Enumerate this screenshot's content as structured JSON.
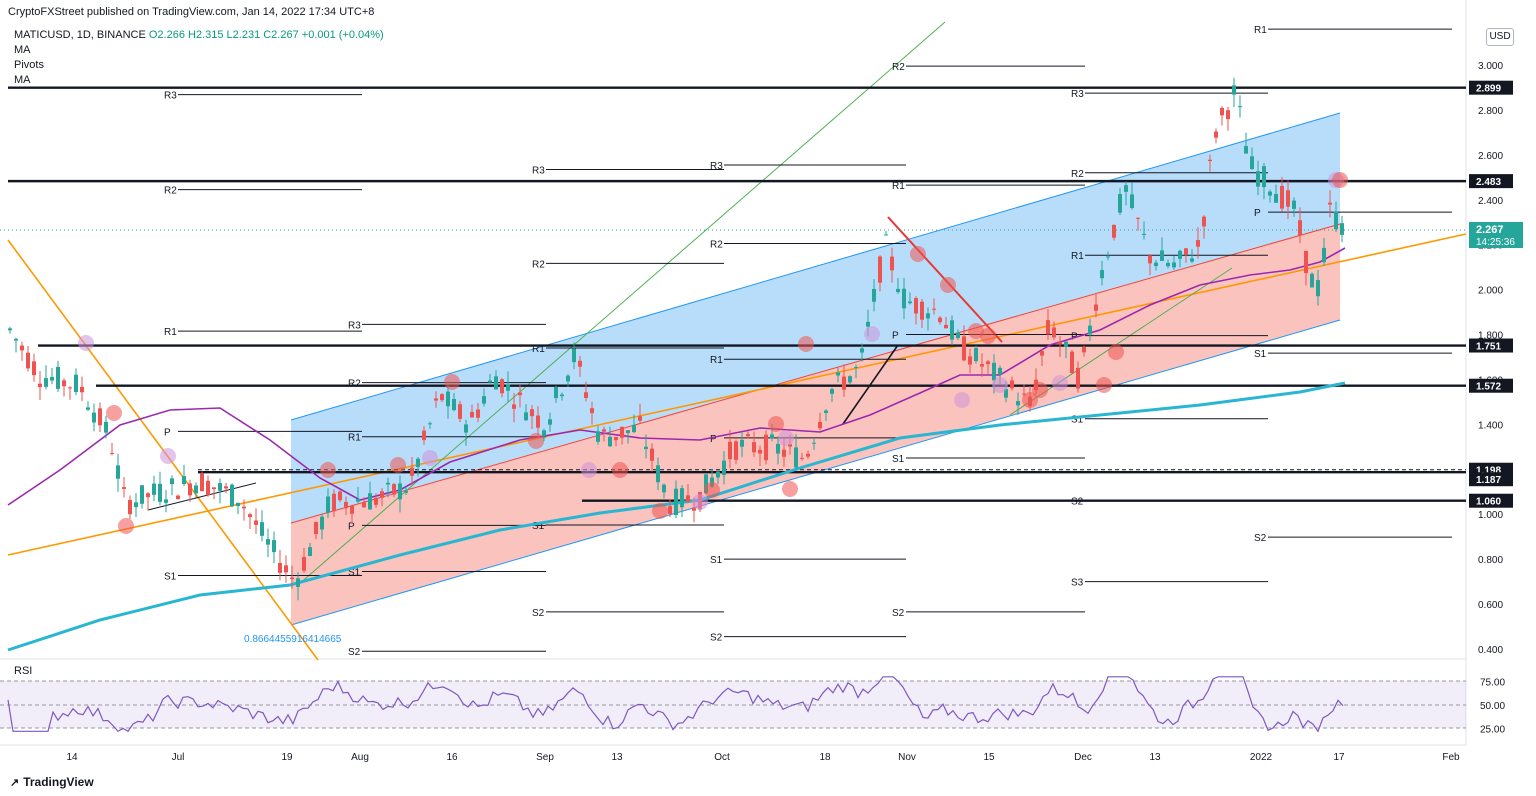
{
  "header": {
    "published_by": "CryptoFXStreet published on TradingView.com, Jan 14, 2022 17:34 UTC+8"
  },
  "legend": {
    "symbol": "MATICUSD, 1D, BINANCE",
    "ohlc": "O2.266  H2.315  L2.231  C2.267  +0.001 (+0.04%)",
    "items": [
      "MA",
      "Pivots",
      "MA"
    ],
    "rsi_label": "RSI"
  },
  "currency_button": "USD",
  "price_axis": {
    "ticks": [
      "3.000",
      "2.800",
      "2.600",
      "2.400",
      "2.200",
      "2.000",
      "1.800",
      "1.600",
      "1.400",
      "1.200",
      "1.000",
      "0.800",
      "0.600",
      "0.400"
    ],
    "rsi_ticks": [
      "75.00",
      "50.00",
      "25.00"
    ]
  },
  "level_badges": [
    {
      "label": "2.899",
      "value": 2.899
    },
    {
      "label": "2.483",
      "value": 2.483
    },
    {
      "label": "1.751",
      "value": 1.751
    },
    {
      "label": "1.572",
      "value": 1.572
    },
    {
      "label": "1.198",
      "value": 1.198
    },
    {
      "label": "1.187",
      "value": 1.187
    },
    {
      "label": "1.060",
      "value": 1.06
    }
  ],
  "current_price_badge": {
    "price": "2.267",
    "countdown": "14:25:36",
    "color": "#26a69a"
  },
  "time_axis": [
    "14",
    "Jul",
    "19",
    "Aug",
    "16",
    "Sep",
    "13",
    "Oct",
    "18",
    "Nov",
    "15",
    "Dec",
    "13",
    "2022",
    "17",
    "Feb"
  ],
  "fib_annotation": "0.8664455916414665",
  "footer": {
    "brand": "TradingView"
  },
  "colors": {
    "up": "#26a69a",
    "down": "#ef5350",
    "channel_blue": "#2196f3",
    "channel_red": "#f44336",
    "ma_teal": "#29b6d1",
    "ma_purple": "#9c27b0",
    "trend_orange": "#ff9800",
    "green_line": "#4caf50"
  },
  "chart_data": {
    "type": "candlestick",
    "symbol": "MATICUSD",
    "interval": "1D",
    "ylim": [
      0.35,
      3.1
    ],
    "current_price": 2.267,
    "horizontal_levels": [
      2.899,
      2.483,
      1.751,
      1.572,
      1.198,
      1.187,
      1.06
    ],
    "pivot_labels": [
      "R1",
      "R2",
      "R3",
      "P",
      "S1",
      "S2",
      "S3"
    ],
    "rsi_levels": [
      70,
      50,
      30
    ]
  }
}
